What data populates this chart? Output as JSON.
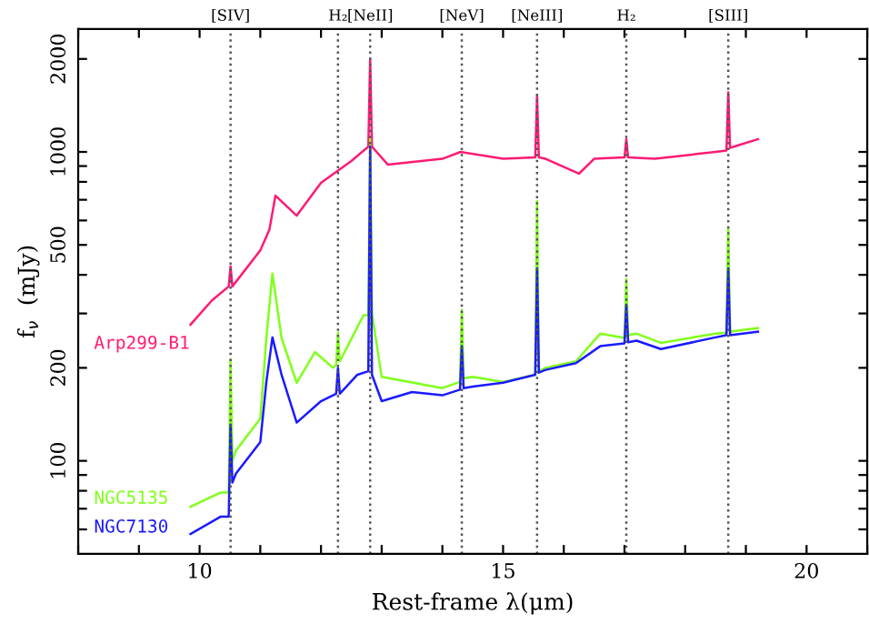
{
  "chart_data": {
    "type": "line",
    "xlabel": "Rest-frame λ(μm)",
    "ylabel": "f$_{ν}$  (mJy)",
    "log": "y",
    "xlim": [
      8,
      21
    ],
    "xticks": [
      {
        "value": 8,
        "label": null
      },
      {
        "value": 9,
        "label": null
      },
      10,
      {
        "value": 11,
        "label": null
      },
      {
        "value": 12,
        "label": null
      },
      {
        "value": 13,
        "label": null
      },
      {
        "value": 14,
        "label": null
      },
      15,
      {
        "value": 16,
        "label": null
      },
      {
        "value": 17,
        "label": null
      },
      {
        "value": 18,
        "label": null
      },
      {
        "value": 19,
        "label": null
      },
      20,
      {
        "value": 21,
        "label": null
      }
    ],
    "ylim": [
      50,
      2500
    ],
    "yticks": [
      {
        "value": 60,
        "label": null
      },
      {
        "value": 70,
        "label": null
      },
      {
        "value": 80,
        "label": null
      },
      {
        "value": 90,
        "label": null
      },
      100,
      200,
      {
        "value": 300,
        "label": null
      },
      {
        "value": 400,
        "label": null
      },
      500,
      {
        "value": 600,
        "label": null
      },
      {
        "value": 700,
        "label": null
      },
      {
        "value": 800,
        "label": null
      },
      {
        "value": 900,
        "label": null
      },
      1000,
      2000
    ],
    "grid": false,
    "legend": false,
    "series": [
      {
        "name": "Arp299-B1",
        "color": "#ff1a75",
        "x": [
          9.85,
          10.2,
          10.48,
          10.51,
          10.54,
          11.0,
          11.15,
          11.25,
          11.6,
          12.0,
          12.5,
          12.78,
          12.81,
          12.84,
          13.1,
          14.0,
          14.3,
          15.0,
          15.53,
          15.56,
          15.59,
          15.7,
          16.25,
          16.5,
          17.0,
          17.03,
          17.06,
          17.5,
          18.5,
          18.68,
          18.71,
          18.74,
          18.8,
          19.2
        ],
        "values": [
          276,
          330,
          367,
          426,
          367,
          480,
          560,
          722,
          622,
          794,
          935,
          1040,
          2000,
          1040,
          910,
          950,
          1000,
          950,
          960,
          1520,
          960,
          950,
          850,
          950,
          960,
          1100,
          960,
          950,
          1000,
          1010,
          1560,
          1030,
          1040,
          1100
        ]
      },
      {
        "name": "NGC5135",
        "color": "#80ff1a",
        "x": [
          9.85,
          10.35,
          10.48,
          10.51,
          10.54,
          10.6,
          11.0,
          11.1,
          11.2,
          11.35,
          11.6,
          11.9,
          12.2,
          12.25,
          12.28,
          12.31,
          12.7,
          12.78,
          12.81,
          12.84,
          13.0,
          14.0,
          14.29,
          14.32,
          14.35,
          14.5,
          15.0,
          15.53,
          15.56,
          15.59,
          15.7,
          16.2,
          16.6,
          17.0,
          17.03,
          17.06,
          17.2,
          17.6,
          18.5,
          18.68,
          18.71,
          18.74,
          19.2
        ],
        "values": [
          71,
          79,
          79,
          213,
          100,
          108,
          137,
          250,
          404,
          250,
          179,
          225,
          200,
          205,
          260,
          210,
          296,
          296,
          1100,
          300,
          187,
          172,
          180,
          308,
          185,
          187,
          180,
          190,
          694,
          195,
          200,
          210,
          258,
          250,
          388,
          255,
          258,
          241,
          258,
          260,
          566,
          262,
          269
        ]
      },
      {
        "name": "NGC7130",
        "color": "#1a1aff",
        "x": [
          9.85,
          10.35,
          10.48,
          10.51,
          10.54,
          10.6,
          11.0,
          11.1,
          11.2,
          11.35,
          11.6,
          12.0,
          12.25,
          12.28,
          12.31,
          12.6,
          12.78,
          12.81,
          12.84,
          13.0,
          13.5,
          14.0,
          14.29,
          14.32,
          14.35,
          14.5,
          15.0,
          15.53,
          15.56,
          15.59,
          15.7,
          16.2,
          16.6,
          17.0,
          17.03,
          17.06,
          17.2,
          17.6,
          18.5,
          18.68,
          18.71,
          18.74,
          19.2
        ],
        "values": [
          58,
          66,
          66,
          131,
          85,
          91,
          115,
          180,
          251,
          190,
          133,
          156,
          165,
          200,
          165,
          190,
          195,
          1040,
          190,
          156,
          167,
          163,
          170,
          235,
          172,
          174,
          179,
          190,
          420,
          193,
          197,
          207,
          235,
          240,
          320,
          242,
          245,
          230,
          251,
          255,
          420,
          255,
          262
        ]
      }
    ],
    "ref_lines": [
      {
        "axis": "x",
        "value": 10.51,
        "label": "[SIV]",
        "line_style": "dotted",
        "color": "#555555"
      },
      {
        "axis": "x",
        "value": 12.28,
        "label": "H₂",
        "line_style": "dotted",
        "color": "#555555"
      },
      {
        "axis": "x",
        "value": 12.81,
        "label": "[NeII]",
        "line_style": "dotted",
        "color": "#555555"
      },
      {
        "axis": "x",
        "value": 14.32,
        "label": "[NeV]",
        "line_style": "dotted",
        "color": "#555555"
      },
      {
        "axis": "x",
        "value": 15.56,
        "label": "[NeIII]",
        "line_style": "dotted",
        "color": "#555555"
      },
      {
        "axis": "x",
        "value": 17.03,
        "label": "H₂",
        "line_style": "dotted",
        "color": "#555555"
      },
      {
        "axis": "x",
        "value": 18.71,
        "label": "[SIII]",
        "line_style": "dotted",
        "color": "#555555"
      }
    ]
  }
}
